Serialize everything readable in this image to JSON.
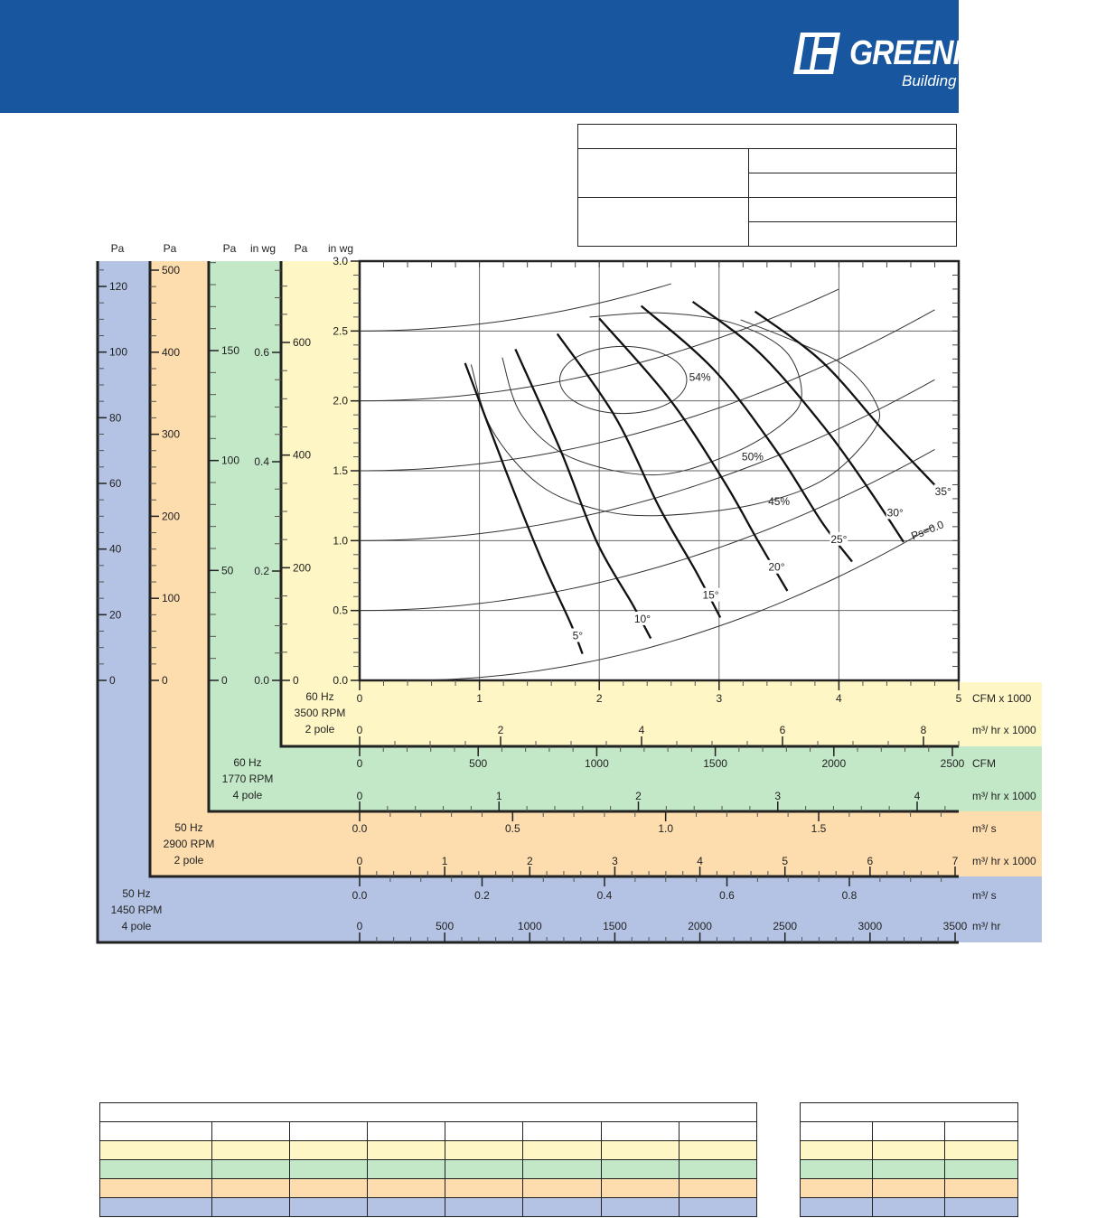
{
  "header": {
    "brand": "GREENHECK",
    "tagline": "Building Value in Air.",
    "brand_color": "#1857a0"
  },
  "colors": {
    "yellow": "#fff6c5",
    "green": "#c2e8c7",
    "orange": "#fddcae",
    "blue": "#b4c3e4"
  },
  "chart_data": {
    "type": "line",
    "title": "",
    "xlabel": "CFM x 1000",
    "ylabel": "in wg",
    "xlim": [
      0,
      5
    ],
    "ylim": [
      0,
      3.0
    ],
    "grid": true,
    "x_ticks": [
      0,
      1,
      2,
      3,
      4,
      5
    ],
    "y_ticks": [
      "0.0",
      "0.5",
      "1.0",
      "1.5",
      "2.0",
      "2.5",
      "3.0"
    ],
    "blade_angle_curves": [
      {
        "name": "5°",
        "points": [
          [
            0.88,
            2.27
          ],
          [
            1.22,
            1.5
          ],
          [
            1.52,
            0.86
          ],
          [
            1.76,
            0.41
          ],
          [
            1.86,
            0.19
          ]
        ],
        "label_at": [
          1.82,
          0.32
        ]
      },
      {
        "name": "10°",
        "points": [
          [
            1.3,
            2.37
          ],
          [
            1.68,
            1.64
          ],
          [
            1.98,
            0.99
          ],
          [
            2.28,
            0.54
          ],
          [
            2.43,
            0.3
          ]
        ],
        "label_at": [
          2.36,
          0.44
        ]
      },
      {
        "name": "15°",
        "points": [
          [
            1.65,
            2.48
          ],
          [
            2.13,
            1.89
          ],
          [
            2.5,
            1.24
          ],
          [
            2.8,
            0.79
          ],
          [
            3.01,
            0.45
          ]
        ],
        "label_at": [
          2.93,
          0.61
        ]
      },
      {
        "name": "20°",
        "points": [
          [
            2.0,
            2.59
          ],
          [
            2.58,
            2.02
          ],
          [
            3.03,
            1.44
          ],
          [
            3.33,
            0.99
          ],
          [
            3.57,
            0.64
          ]
        ],
        "label_at": [
          3.48,
          0.81
        ]
      },
      {
        "name": "25°",
        "points": [
          [
            2.35,
            2.68
          ],
          [
            2.96,
            2.22
          ],
          [
            3.48,
            1.64
          ],
          [
            3.86,
            1.13
          ],
          [
            4.11,
            0.85
          ]
        ],
        "label_at": [
          4.0,
          1.01
        ]
      },
      {
        "name": "30°",
        "points": [
          [
            2.78,
            2.71
          ],
          [
            3.33,
            2.35
          ],
          [
            3.86,
            1.83
          ],
          [
            4.24,
            1.38
          ],
          [
            4.54,
            0.99
          ]
        ],
        "label_at": [
          4.47,
          1.2
        ]
      },
      {
        "name": "35°",
        "points": [
          [
            3.3,
            2.64
          ],
          [
            3.86,
            2.28
          ],
          [
            4.39,
            1.77
          ],
          [
            4.82,
            1.38
          ]
        ],
        "label_at": [
          4.87,
          1.35
        ]
      }
    ],
    "system_curves": [
      {
        "start_in_wg": 0.0,
        "end_cfm_k": 4.85,
        "label": "Ps=0.0",
        "label_at": [
          4.75,
          1.05
        ]
      },
      {
        "start_in_wg": 0.5,
        "end_cfm_k": 4.81
      },
      {
        "start_in_wg": 1.0,
        "end_cfm_k": 4.81
      },
      {
        "start_in_wg": 1.5,
        "end_cfm_k": 4.81
      },
      {
        "start_in_wg": 2.0,
        "end_cfm_k": 4.02
      },
      {
        "start_in_wg": 2.5,
        "end_cfm_k": 2.6
      }
    ],
    "efficiency_contours": [
      {
        "name": "54%",
        "center": [
          2.2,
          2.15
        ],
        "radii": [
          0.53,
          0.24
        ],
        "label_at": [
          2.84,
          2.17
        ]
      },
      {
        "name": "50%",
        "points": [
          [
            1.19,
            2.31
          ],
          [
            1.35,
            1.9
          ],
          [
            1.75,
            1.6
          ],
          [
            2.46,
            1.47
          ],
          [
            3.1,
            1.62
          ],
          [
            3.55,
            1.85
          ],
          [
            3.69,
            2.05
          ],
          [
            3.55,
            2.36
          ],
          [
            3.1,
            2.56
          ],
          [
            2.5,
            2.63
          ],
          [
            1.92,
            2.6
          ]
        ],
        "label_at": [
          3.28,
          1.6
        ]
      },
      {
        "name": "45%",
        "points": [
          [
            0.93,
            2.26
          ],
          [
            1.1,
            1.8
          ],
          [
            1.5,
            1.4
          ],
          [
            2.0,
            1.22
          ],
          [
            2.52,
            1.18
          ],
          [
            3.3,
            1.26
          ],
          [
            3.9,
            1.45
          ],
          [
            4.3,
            1.8
          ],
          [
            4.3,
            2.0
          ],
          [
            4.05,
            2.25
          ],
          [
            3.65,
            2.42
          ],
          [
            3.18,
            2.58
          ]
        ],
        "label_at": [
          3.5,
          1.28
        ]
      }
    ]
  },
  "left_scales": [
    {
      "id": "blue_pa",
      "unit": "Pa",
      "labels": [
        0,
        20,
        40,
        60,
        80,
        100,
        120
      ],
      "minor": 5
    },
    {
      "id": "orange_pa",
      "unit": "Pa",
      "labels": [
        0,
        100,
        200,
        300,
        400,
        500
      ],
      "minor": 20
    },
    {
      "id": "green_pa",
      "unit": "Pa",
      "labels": [
        0,
        50,
        100,
        150
      ],
      "minor": 10
    },
    {
      "id": "green_inwg",
      "unit": "in wg",
      "labels": [
        "0.0",
        "0.2",
        "0.4",
        "0.6"
      ],
      "minor": 0.05
    },
    {
      "id": "yellow_pa",
      "unit": "Pa",
      "labels": [
        0,
        200,
        400,
        600
      ],
      "minor": 50
    },
    {
      "id": "yellow_inwg",
      "unit": "in wg",
      "labels": [
        "0.0",
        "0.5",
        "1.0",
        "1.5",
        "2.0",
        "2.5",
        "3.0"
      ],
      "minor": 0.1
    }
  ],
  "bands": [
    {
      "id": "yellow",
      "speed": [
        "60 Hz",
        "3500 RPM",
        "2 pole"
      ]
    },
    {
      "id": "green",
      "speed": [
        "60 Hz",
        "1770 RPM",
        "4 pole"
      ]
    },
    {
      "id": "orange",
      "speed": [
        "50 Hz",
        "2900 RPM",
        "2 pole"
      ]
    },
    {
      "id": "blue",
      "speed": [
        "50 Hz",
        "1450 RPM",
        "4 pole"
      ]
    }
  ],
  "bottom_scales": [
    {
      "id": "yellow_cfm",
      "unit": "CFM x 1000",
      "labels": [
        "0",
        "1",
        "2",
        "3",
        "4",
        "5"
      ],
      "minor": 0.2
    },
    {
      "id": "yellow_m3hr",
      "unit": "m³/ hr x 1000",
      "labels": [
        "0",
        "2",
        "4",
        "6",
        "8"
      ],
      "minor": 0.5
    },
    {
      "id": "green_cfm",
      "unit": "CFM",
      "labels": [
        "0",
        "500",
        "1000",
        "1500",
        "2000",
        "2500"
      ],
      "minor": 100
    },
    {
      "id": "green_m3hr",
      "unit": "m³/ hr x 1000",
      "labels": [
        "0",
        "1",
        "2",
        "3",
        "4"
      ],
      "minor": 0.2
    },
    {
      "id": "orange_m3s",
      "unit": "m³/ s",
      "labels": [
        "0.0",
        "0.5",
        "1.0",
        "1.5"
      ],
      "minor": 0.1
    },
    {
      "id": "orange_m3hr",
      "unit": "m³/ hr x 1000",
      "labels": [
        "0",
        "1",
        "2",
        "3",
        "4",
        "5",
        "6",
        "7"
      ],
      "minor": 0.2
    },
    {
      "id": "blue_m3s",
      "unit": "m³/ s",
      "labels": [
        "0.0",
        "0.2",
        "0.4",
        "0.6",
        "0.8"
      ],
      "minor": 0.05
    },
    {
      "id": "blue_m3hr",
      "unit": "m³/ hr",
      "labels": [
        "0",
        "500",
        "1000",
        "1500",
        "2000",
        "2500",
        "3000",
        "3500"
      ],
      "minor": 100
    }
  ],
  "tables": {
    "top": {
      "rows": 5
    },
    "bottom_left": {
      "columns": 8,
      "row_colors": [
        "yellow",
        "green",
        "orange",
        "blue"
      ]
    },
    "bottom_right": {
      "columns": 3,
      "row_colors": [
        "yellow",
        "green",
        "orange",
        "blue"
      ]
    }
  }
}
